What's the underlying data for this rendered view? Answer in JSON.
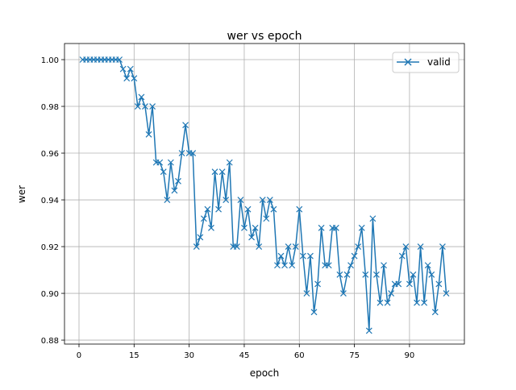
{
  "chart_data": {
    "type": "line",
    "title": "wer vs epoch",
    "xlabel": "epoch",
    "ylabel": "wer",
    "xlim": [
      -3.95,
      104.95
    ],
    "ylim": [
      0.8783,
      1.0069
    ],
    "xticks": [
      0,
      15,
      30,
      45,
      60,
      75,
      90
    ],
    "xtick_labels": [
      "0",
      "15",
      "30",
      "45",
      "60",
      "75",
      "90"
    ],
    "yticks": [
      0.88,
      0.9,
      0.92,
      0.94,
      0.96,
      0.98,
      1.0
    ],
    "ytick_labels": [
      "0.88",
      "0.90",
      "0.92",
      "0.94",
      "0.96",
      "0.98",
      "1.00"
    ],
    "grid": true,
    "legend_position": "top-right",
    "series": [
      {
        "name": "valid",
        "color": "#1f77b4",
        "marker": "x",
        "values": [
          1.0,
          1.0,
          1.0,
          1.0,
          1.0,
          1.0,
          1.0,
          1.0,
          1.0,
          1.0,
          1.0,
          0.996,
          0.992,
          0.996,
          0.992,
          0.98,
          0.984,
          0.98,
          0.968,
          0.98,
          0.956,
          0.956,
          0.952,
          0.94,
          0.956,
          0.944,
          0.948,
          0.96,
          0.972,
          0.96,
          0.96,
          0.92,
          0.924,
          0.932,
          0.936,
          0.928,
          0.952,
          0.936,
          0.952,
          0.94,
          0.956,
          0.92,
          0.92,
          0.94,
          0.928,
          0.936,
          0.924,
          0.928,
          0.92,
          0.94,
          0.932,
          0.94,
          0.936,
          0.912,
          0.916,
          0.912,
          0.92,
          0.912,
          0.92,
          0.936,
          0.916,
          0.9,
          0.916,
          0.892,
          0.904,
          0.928,
          0.912,
          0.912,
          0.928,
          0.928,
          0.908,
          0.9,
          0.908,
          0.912,
          0.916,
          0.92,
          0.928,
          0.908,
          0.884,
          0.932,
          0.908,
          0.896,
          0.912,
          0.896,
          0.9,
          0.904,
          0.904,
          0.916,
          0.92,
          0.904,
          0.908,
          0.896,
          0.92,
          0.896,
          0.912,
          0.908,
          0.892,
          0.904,
          0.92,
          0.9
        ]
      }
    ]
  }
}
